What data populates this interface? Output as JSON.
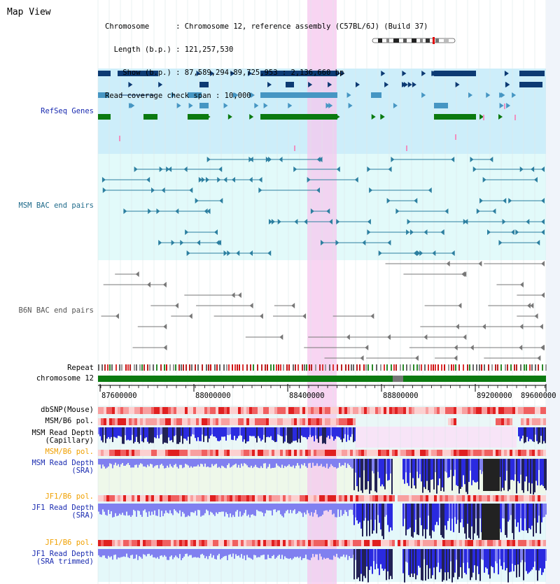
{
  "page_title": "Map View",
  "info": {
    "chromosome": "Chromosome      : Chromosome 12, reference assembly (C57BL/6J) (Build 37)",
    "length": "  Length (b.p.) : 121,257,530",
    "show": "    Show (b.p.) : 87,589,294-89,725,953 : 2,136,660 bp",
    "coverage": "Read coverage check span : 10,000"
  },
  "labels": {
    "refseq": "RefSeq Genes",
    "msm_bac": "MSM BAC end pairs",
    "b6n_bac": "B6N BAC end pairs",
    "repeat": "Repeat",
    "chromosome": "chromosome 12",
    "dbsnp": "dbSNP(Mouse)",
    "msm_b6_pol_1": "MSM/B6 pol.",
    "msm_depth_cap": "MSM Read Depth\n(Capillary)",
    "msm_b6_pol_2": "MSM/B6 pol.",
    "msm_depth_sra": "MSM Read Depth\n(SRA)",
    "jf1_b6_pol_1": "JF1/B6 pol.",
    "jf1_depth_sra": "JF1 Read Depth\n(SRA)",
    "jf1_b6_pol_2": "JF1/B6 pol.",
    "jf1_depth_trim": "JF1 Read Depth\n(SRA trimmed)"
  },
  "axis": {
    "ticks": [
      "87600000",
      "88000000",
      "88400000",
      "88800000",
      "89200000",
      "89600000"
    ]
  },
  "colors": {
    "highlight": "#f5c7ee",
    "refseq_bg": "#cdeefa",
    "bac_bg": "#e2fafa",
    "label_blue": "#1a2bb0",
    "label_orange": "#f0a000",
    "label_teal": "#1f6a8a",
    "gene_dark": "#0d3a73",
    "gene_mid": "#4696c3",
    "gene_green": "#0b7a10",
    "gene_pink": "#f090c0",
    "chrom_green": "#0b7a10"
  }
}
